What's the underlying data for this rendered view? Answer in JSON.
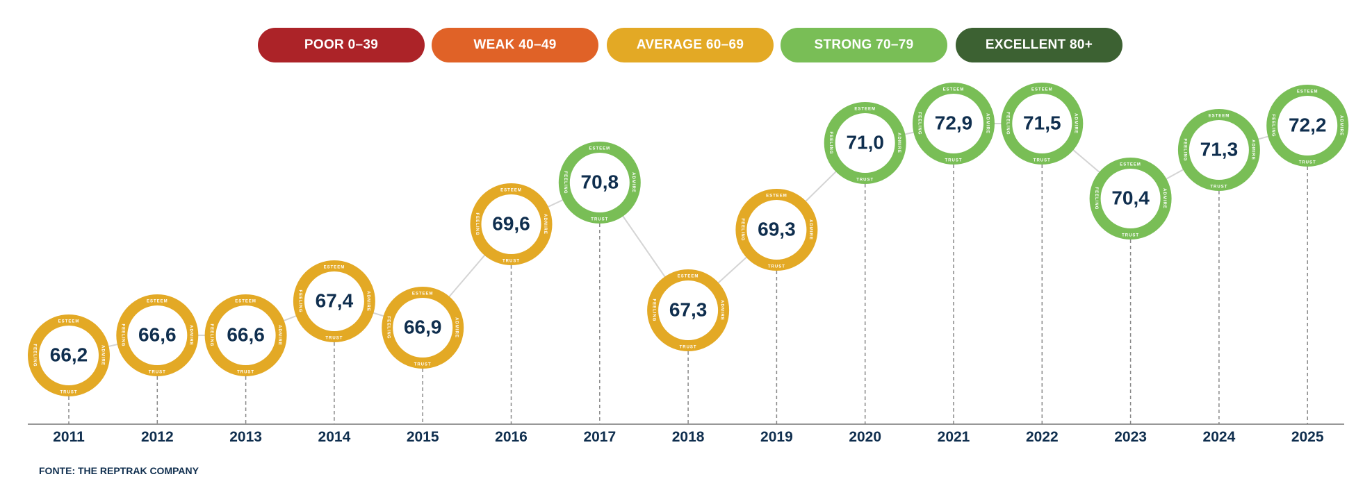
{
  "legend": [
    {
      "label": "POOR  0–39",
      "color": "#ac2328"
    },
    {
      "label": "WEAK  40–49",
      "color": "#e06227"
    },
    {
      "label": "AVERAGE  60–69",
      "color": "#e3a925"
    },
    {
      "label": "STRONG  70–79",
      "color": "#79be56"
    },
    {
      "label": "EXCELLENT  80+",
      "color": "#3c6132"
    }
  ],
  "ring_labels": {
    "top": "ESTEEM",
    "right": "ADMIRE",
    "bottom": "TRUST",
    "left": "FEELING"
  },
  "source": "FONTE: THE REPTRAK COMPANY",
  "chart_data": {
    "type": "line",
    "categories": [
      "2011",
      "2012",
      "2013",
      "2014",
      "2015",
      "2016",
      "2017",
      "2018",
      "2019",
      "2020",
      "2021",
      "2022",
      "2023",
      "2024",
      "2025"
    ],
    "values": [
      66.2,
      66.6,
      66.6,
      67.4,
      66.9,
      69.6,
      70.8,
      67.3,
      69.3,
      71.0,
      72.9,
      71.5,
      70.4,
      71.3,
      72.2
    ],
    "value_labels": [
      "66,2",
      "66,6",
      "66,6",
      "67,4",
      "66,9",
      "69,6",
      "70,8",
      "67,3",
      "69,3",
      "71,0",
      "72,9",
      "71,5",
      "70,4",
      "71,3",
      "72,2"
    ],
    "rating": [
      "average",
      "average",
      "average",
      "average",
      "average",
      "average",
      "strong",
      "average",
      "average",
      "strong",
      "strong",
      "strong",
      "strong",
      "strong",
      "strong"
    ],
    "colors": {
      "average": "#e3a925",
      "strong": "#79be56"
    },
    "text_color": "#0f2e4e",
    "title": "",
    "xlabel": "",
    "ylabel": ""
  }
}
